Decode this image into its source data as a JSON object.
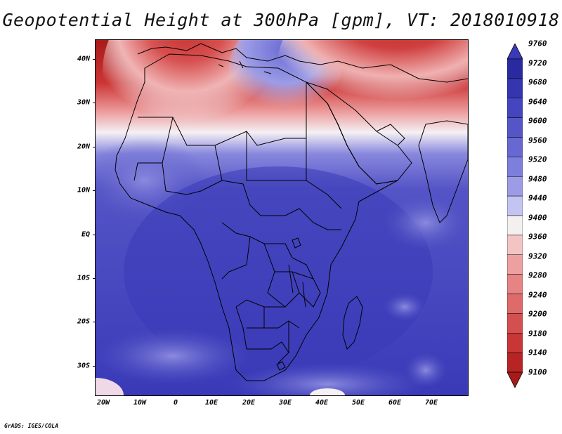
{
  "title": "Geopotential Height at 300hPa [gpm], VT: 2018010918",
  "credit": "GrADS: IGES/COLA",
  "map": {
    "lon_range": [
      -22,
      80
    ],
    "lat_range": [
      -37,
      45
    ],
    "x_ticks": [
      "20W",
      "10W",
      "0",
      "10E",
      "20E",
      "30E",
      "40E",
      "50E",
      "60E",
      "70E"
    ],
    "y_ticks": [
      "40N",
      "30N",
      "20N",
      "10N",
      "EQ",
      "10S",
      "20S",
      "30S"
    ]
  },
  "colorbar": {
    "levels": [
      "9760",
      "9720",
      "9680",
      "9640",
      "9600",
      "9560",
      "9520",
      "9480",
      "9440",
      "9400",
      "9360",
      "9320",
      "9280",
      "9240",
      "9200",
      "9180",
      "9140",
      "9100"
    ],
    "colors_top_to_bottom": [
      "#3a3ab8",
      "#2a2aa0",
      "#3535b0",
      "#4545c0",
      "#5555c8",
      "#6868d2",
      "#7e7edc",
      "#9c9ce6",
      "#c4c4f2",
      "#f5f0f0",
      "#f3c4c4",
      "#eea0a0",
      "#e68484",
      "#de6a6a",
      "#d45050",
      "#c83636",
      "#b82424",
      "#a81a1a"
    ]
  },
  "field_colors": {
    "deep_blue": "#3a3ab8",
    "mid_blue": "#5454c6",
    "light_blue": "#8888de",
    "white": "#f4f0f4",
    "light_red": "#ec9a9a",
    "red": "#cc3434",
    "deep_red": "#a81a1a"
  }
}
